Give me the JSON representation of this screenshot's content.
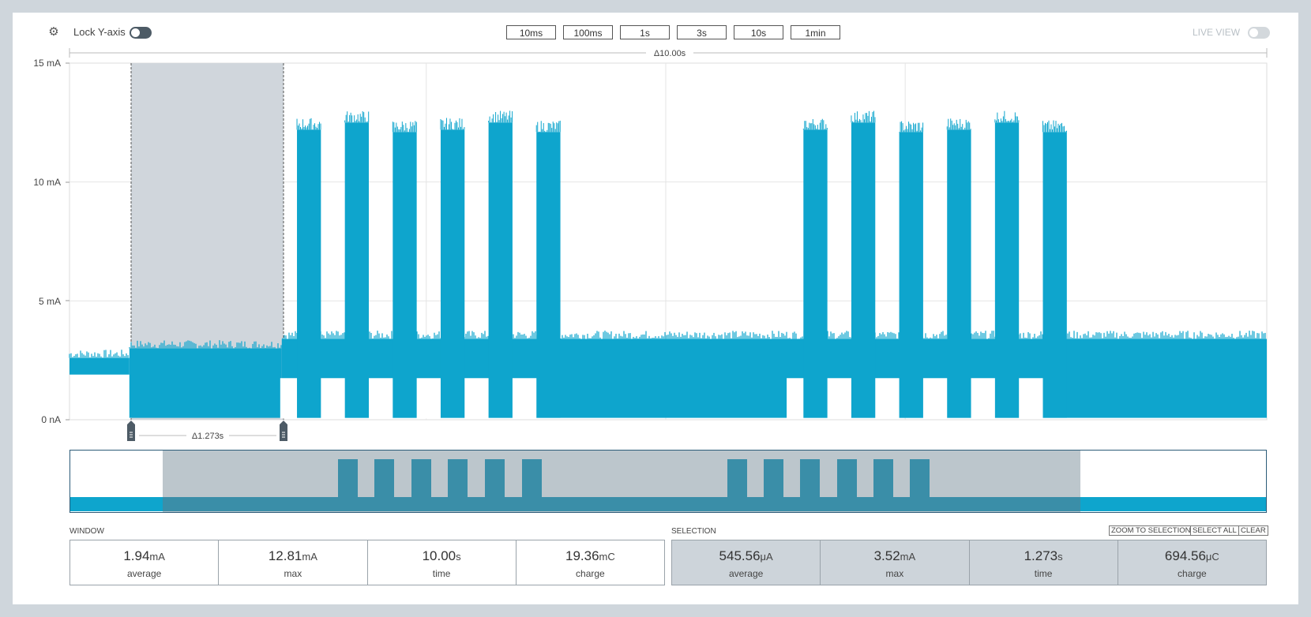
{
  "header": {
    "lock_label": "Lock Y-axis",
    "live_label": "LIVE VIEW",
    "window_buttons": [
      "10ms",
      "100ms",
      "1s",
      "3s",
      "10s",
      "1min"
    ]
  },
  "chart": {
    "delta_label": "Δ10.00s",
    "selection_delta_label": "Δ1.273s",
    "y_ticks": [
      "15 mA",
      "10 mA",
      "5 mA",
      "0 nA"
    ]
  },
  "chart_data": {
    "type": "area",
    "title": "",
    "xlabel": "",
    "ylabel": "",
    "ylim": [
      0,
      15
    ],
    "y_unit": "mA",
    "window_s": 10.0,
    "selection_start_s": 0.5,
    "selection_end_s": 1.773,
    "baseline_mA": [
      1.9,
      2.6
    ],
    "burst_peaks_mA": [
      12.2,
      12.5,
      12.1,
      12.2,
      12.5,
      12.1,
      12.2,
      12.5,
      12.1,
      12.2,
      12.5,
      12.1
    ]
  },
  "window_stats": {
    "title": "WINDOW",
    "items": [
      {
        "value": "1.94",
        "unit": "mA",
        "name": "average"
      },
      {
        "value": "12.81",
        "unit": "mA",
        "name": "max"
      },
      {
        "value": "10.00",
        "unit": "s",
        "name": "time"
      },
      {
        "value": "19.36",
        "unit": "mC",
        "name": "charge"
      }
    ]
  },
  "selection_stats": {
    "title": "SELECTION",
    "zoom_label": "ZOOM TO SELECTION",
    "select_all_label": "SELECT ALL",
    "clear_label": "CLEAR",
    "items": [
      {
        "value": "545.56",
        "unit": "μA",
        "name": "average"
      },
      {
        "value": "3.52",
        "unit": "mA",
        "name": "max"
      },
      {
        "value": "1.273",
        "unit": "s",
        "name": "time"
      },
      {
        "value": "694.56",
        "unit": "μC",
        "name": "charge"
      }
    ]
  },
  "colors": {
    "signal": "#0ea5cd",
    "selection": "#d0d6dc",
    "toggle_on": "#4d5b66",
    "overview_dark": "#3a8ea8"
  }
}
